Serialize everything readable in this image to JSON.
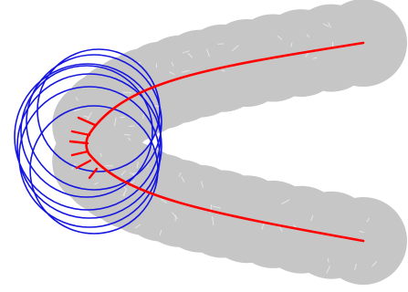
{
  "colors": {
    "background": "#ffffff",
    "disk_fill": "#c6c6c6",
    "hatch": "#e6e6e6",
    "circle_stroke": "#1515e0",
    "path_stroke": "#ff0000"
  },
  "icons": {
    "disk": "gray-disk-shape",
    "circle": "blue-circle-outline",
    "curve": "red-curve",
    "whisker": "red-tick-mark"
  },
  "figure": {
    "upper_arm_disk_count": 14,
    "lower_arm_disk_count": 14,
    "blue_circle_count": 7,
    "whisker_count": 6,
    "style": "swept-disk trajectory with two arms converging to a cusp"
  }
}
